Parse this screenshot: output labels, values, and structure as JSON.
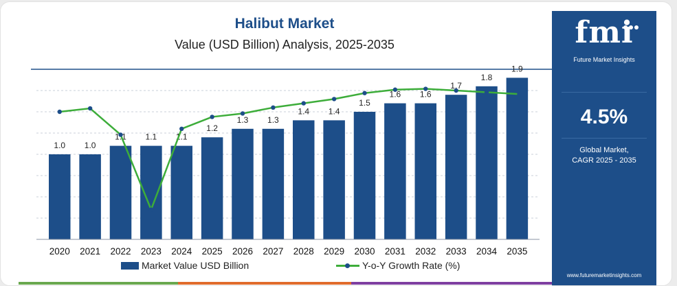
{
  "chart_data": {
    "type": "bar",
    "title": "Halibut Market",
    "subtitle": "Value (USD Billion) Analysis, 2025-2035",
    "categories": [
      "2020",
      "2021",
      "2022",
      "2023",
      "2024",
      "2025",
      "2026",
      "2027",
      "2028",
      "2029",
      "2030",
      "2031",
      "2032",
      "2033",
      "2034",
      "2035"
    ],
    "series": [
      {
        "name": "Market Value USD Billion",
        "type": "bar",
        "values": [
          1.0,
          1.0,
          1.1,
          1.1,
          1.1,
          1.2,
          1.3,
          1.3,
          1.4,
          1.4,
          1.5,
          1.6,
          1.6,
          1.7,
          1.8,
          1.9
        ],
        "value_labels": [
          "1.0",
          "1.0",
          "1.1",
          "1.1",
          "1.1",
          "1.2",
          "1.3",
          "1.3",
          "1.4",
          "1.4",
          "1.5",
          "1.6",
          "1.6",
          "1.7",
          "1.8",
          "1.9"
        ],
        "color": "#1d4e89"
      },
      {
        "name": "Y-o-Y Growth Rate (%)",
        "type": "line",
        "values": [
          5.0,
          5.4,
          2.3,
          -6.5,
          3.0,
          4.4,
          4.8,
          5.5,
          6.0,
          6.5,
          7.2,
          7.6,
          7.7,
          7.5,
          7.3,
          7.1
        ],
        "color": "#3dad3a"
      }
    ],
    "ylim": [
      0,
      2.0
    ],
    "y2lim": [
      -10,
      10
    ],
    "grid": true,
    "legend": "bottom"
  },
  "side_panel": {
    "logo": "fmi",
    "logo_sub": "Future Market Insights",
    "cagr_value": "4.5%",
    "cagr_label_line1": "Global Market,",
    "cagr_label_line2": "CAGR 2025 - 2035",
    "website": "www.futuremarketinsights.com",
    "background": "#1d4e89"
  },
  "strip_colors": [
    "#6aa84f",
    "#e06c2c",
    "#7e3fa0"
  ]
}
